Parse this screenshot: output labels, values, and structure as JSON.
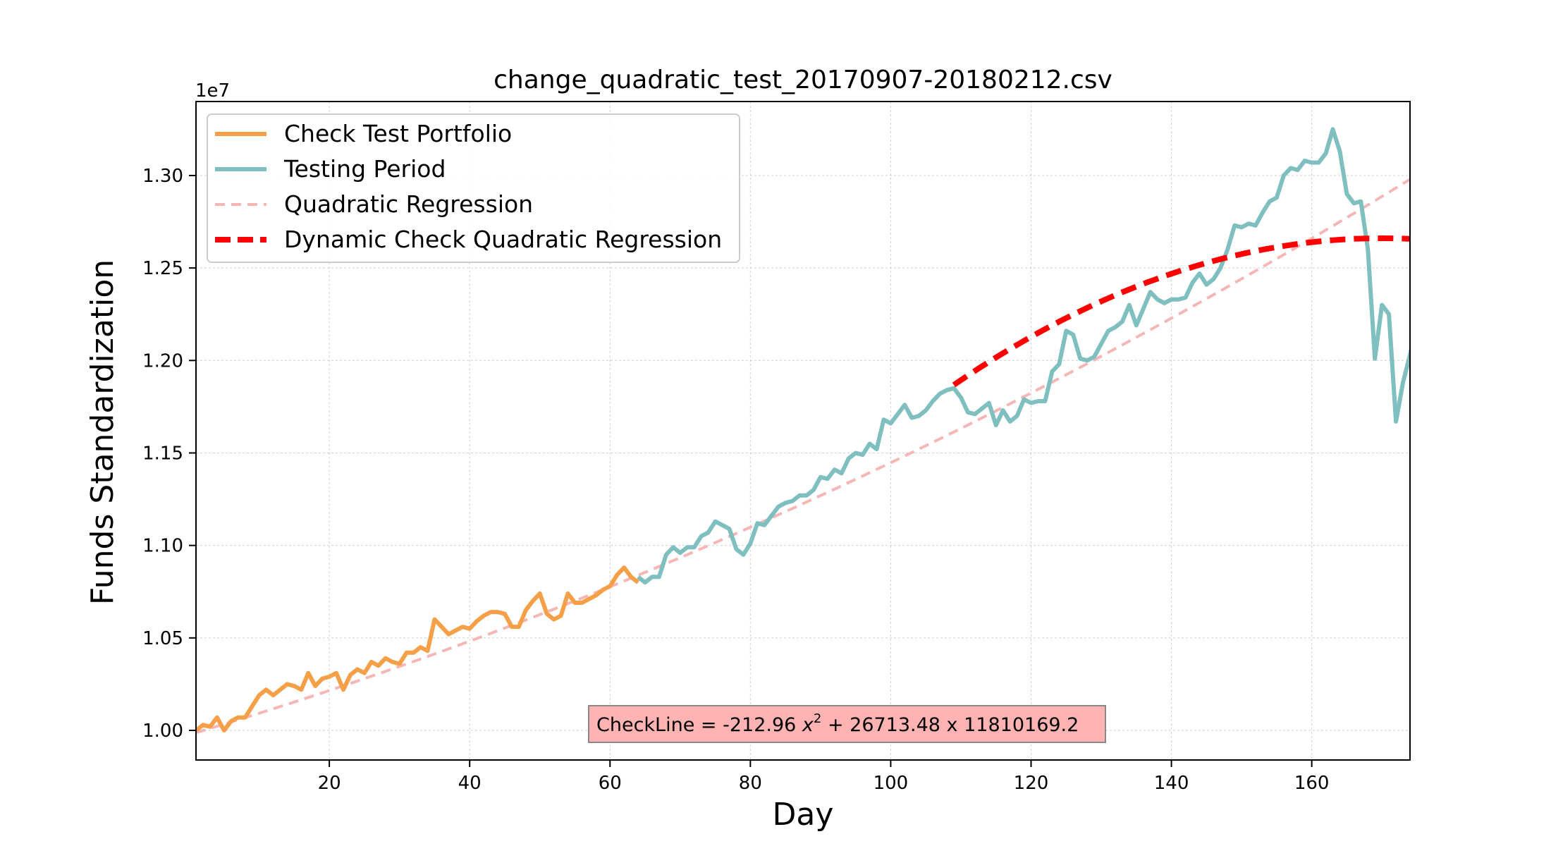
{
  "chart_data": {
    "type": "line",
    "title": "change_quadratic_test_20170907-20180212.csv",
    "xlabel": "Day",
    "ylabel": "Funds Standardization",
    "y_offset_label": "1e7",
    "xlim": [
      1,
      174
    ],
    "ylim": [
      9.84,
      13.4
    ],
    "y_scale_factor": 10000000,
    "x_ticks": [
      20,
      40,
      60,
      80,
      100,
      120,
      140,
      160
    ],
    "y_ticks": [
      10.0,
      10.5,
      11.0,
      11.5,
      12.0,
      12.5,
      13.0
    ],
    "y_tick_labels": [
      "1.00",
      "1.05",
      "1.10",
      "1.15",
      "1.20",
      "1.25",
      "1.30"
    ],
    "grid": true,
    "legend_position": "upper-left",
    "series": [
      {
        "name": "Check Test Portfolio",
        "color": "#f5a049",
        "style": "solid",
        "x_start": 1,
        "values": [
          10.0,
          10.03,
          10.02,
          10.07,
          10.0,
          10.05,
          10.07,
          10.07,
          10.13,
          10.19,
          10.22,
          10.19,
          10.22,
          10.25,
          10.24,
          10.22,
          10.31,
          10.24,
          10.28,
          10.29,
          10.31,
          10.22,
          10.3,
          10.33,
          10.31,
          10.37,
          10.35,
          10.39,
          10.37,
          10.36,
          10.42,
          10.42,
          10.45,
          10.43,
          10.6,
          10.56,
          10.52,
          10.54,
          10.56,
          10.55,
          10.59,
          10.62,
          10.64,
          10.64,
          10.63,
          10.56,
          10.56,
          10.65,
          10.7,
          10.74,
          10.63,
          10.6,
          10.62,
          10.74,
          10.69,
          10.69,
          10.71,
          10.73,
          10.76,
          10.78,
          10.84,
          10.88,
          10.83,
          10.8
        ]
      },
      {
        "name": "Testing Period",
        "color": "#7fbfbf",
        "style": "solid",
        "x_start": 64,
        "values": [
          10.83,
          10.8,
          10.83,
          10.83,
          10.95,
          10.99,
          10.96,
          10.99,
          10.99,
          11.05,
          11.07,
          11.13,
          11.11,
          11.09,
          10.98,
          10.95,
          11.01,
          11.12,
          11.11,
          11.16,
          11.21,
          11.23,
          11.24,
          11.27,
          11.27,
          11.3,
          11.37,
          11.36,
          11.41,
          11.39,
          11.47,
          11.5,
          11.49,
          11.55,
          11.52,
          11.68,
          11.66,
          11.71,
          11.76,
          11.69,
          11.7,
          11.73,
          11.78,
          11.82,
          11.84,
          11.85,
          11.8,
          11.72,
          11.71,
          11.74,
          11.77,
          11.65,
          11.73,
          11.67,
          11.7,
          11.79,
          11.77,
          11.78,
          11.78,
          11.94,
          11.98,
          12.16,
          12.14,
          12.01,
          12.0,
          12.02,
          12.09,
          12.16,
          12.18,
          12.21,
          12.3,
          12.19,
          12.28,
          12.37,
          12.33,
          12.31,
          12.33,
          12.33,
          12.34,
          12.42,
          12.47,
          12.41,
          12.44,
          12.5,
          12.6,
          12.73,
          12.72,
          12.74,
          12.73,
          12.8,
          12.86,
          12.88,
          13.0,
          13.04,
          13.03,
          13.08,
          13.07,
          13.07,
          13.12,
          13.25,
          13.13,
          12.9,
          12.85,
          12.86,
          12.6,
          12.01,
          12.3,
          12.25,
          11.67,
          11.88,
          12.03,
          12.2
        ]
      },
      {
        "name": "Quadratic Regression",
        "color": "#f7b6b6",
        "style": "dashed",
        "x_range": [
          1,
          174
        ],
        "coefficients": {
          "a": 3.44e-05,
          "b": 0.01127,
          "c": 9.9765
        }
      },
      {
        "name": "Dynamic Check Quadratic Regression",
        "color": "#ff0000",
        "style": "dashed",
        "x_range": [
          109,
          174
        ],
        "coefficients": {
          "a": -0.0002129,
          "b": 0.0724,
          "c": 6.5056
        }
      }
    ],
    "annotation": {
      "text_prefix": "CheckLine = -212.96 ",
      "text_var": "x",
      "text_sup": "2",
      "text_suffix": " + 26713.48 x 11810169.2",
      "background": "#ffb3b3"
    }
  }
}
